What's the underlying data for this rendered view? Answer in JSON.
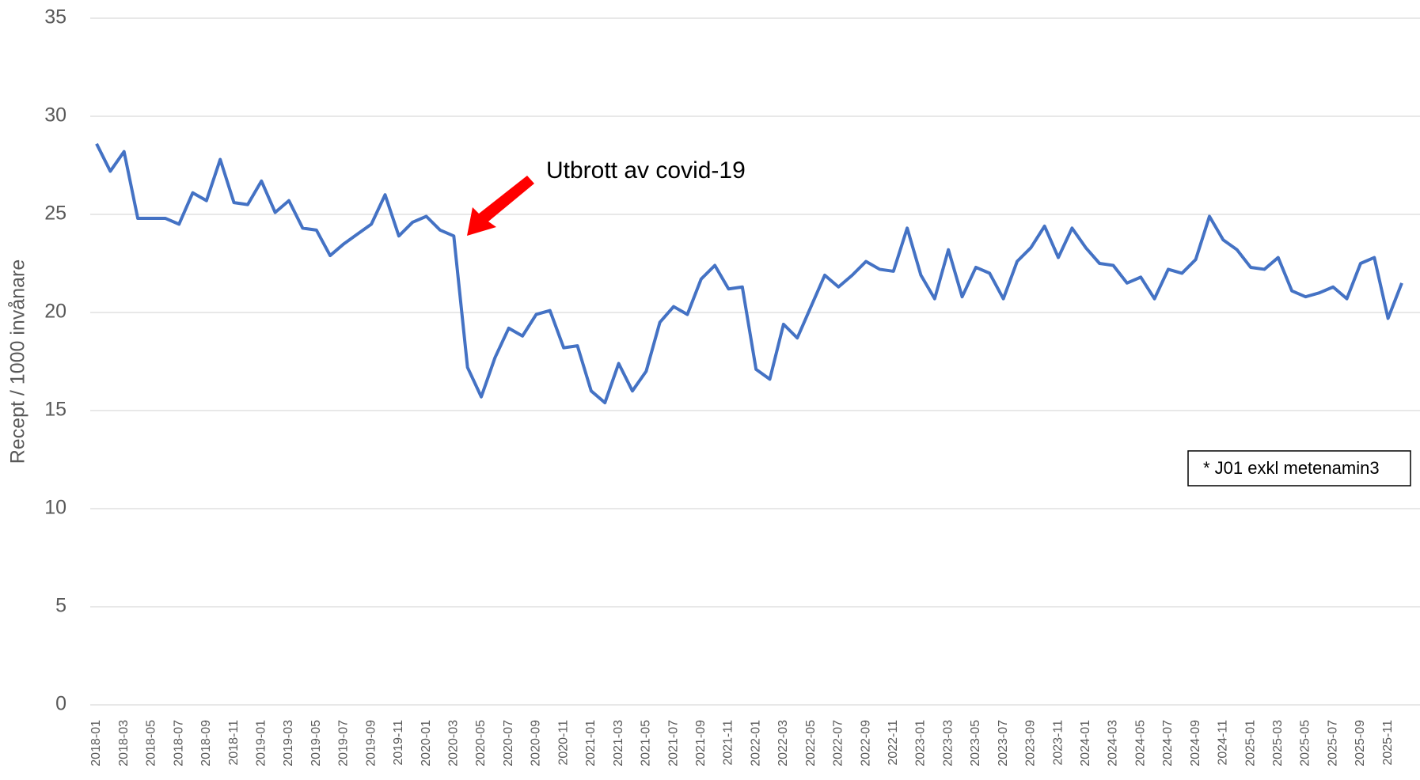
{
  "chart_data": {
    "type": "line",
    "y_label": "Recept / 1000 invånare",
    "annotations": [
      "Utbrott av covid-19",
      "* J01 exkl metenamin3"
    ],
    "categories": [
      "2018-01",
      null,
      "2018-03",
      null,
      "2018-05",
      null,
      "2018-07",
      null,
      "2018-09",
      null,
      "2018-11",
      null,
      "2019-01",
      null,
      "2019-03",
      null,
      "2019-05",
      null,
      "2019-07",
      null,
      "2019-09",
      null,
      "2019-11",
      null,
      "2020-01",
      null,
      "2020-03",
      null,
      "2020-05",
      null,
      "2020-07",
      null,
      "2020-09",
      null,
      "2020-11",
      null,
      "2021-01",
      null,
      "2021-03",
      null,
      "2021-05",
      null,
      "2021-07",
      null,
      "2021-09",
      null,
      "2021-11",
      null,
      "2022-01",
      null,
      "2022-03",
      null,
      "2022-05",
      null,
      "2022-07",
      null,
      "2022-09",
      null,
      "2022-11",
      null,
      "2023-01",
      null,
      "2023-03",
      null,
      "2023-05",
      null,
      "2023-07",
      null,
      "2023-09",
      null,
      "2023-11",
      null,
      "2024-01",
      null,
      "2024-03",
      null,
      "2024-05",
      null,
      "2024-07",
      null,
      "2024-09",
      null,
      "2024-11",
      null,
      "2025-01",
      null,
      "2025-03",
      null,
      "2025-05",
      null,
      "2025-07",
      null,
      "2025-09",
      null,
      "2025-11",
      null
    ],
    "series": [
      {
        "color": "#4472c4",
        "values": [
          28.6,
          27.2,
          28.2,
          24.8,
          24.8,
          24.8,
          24.5,
          26.1,
          25.7,
          27.8,
          25.6,
          25.5,
          26.7,
          25.1,
          25.7,
          24.3,
          24.2,
          22.9,
          23.5,
          24.0,
          24.5,
          26.0,
          23.9,
          24.6,
          24.9,
          24.2,
          23.9,
          17.2,
          15.7,
          17.7,
          19.2,
          18.8,
          19.9,
          20.1,
          18.2,
          18.3,
          16.0,
          15.4,
          17.4,
          16.0,
          17.0,
          19.5,
          20.3,
          19.9,
          21.7,
          22.4,
          21.2,
          21.3,
          17.1,
          16.6,
          19.4,
          18.7,
          20.3,
          21.9,
          21.3,
          21.9,
          22.6,
          22.2,
          22.1,
          24.3,
          21.9,
          20.7,
          23.2,
          20.8,
          22.3,
          22.0,
          20.7,
          22.6,
          23.3,
          24.4,
          22.8,
          24.3,
          23.3,
          22.5,
          22.4,
          21.5,
          21.8,
          20.7,
          22.2,
          22.0,
          22.7,
          24.9,
          23.7,
          23.2,
          22.3,
          22.2,
          22.8,
          21.1,
          20.8,
          21.0,
          21.3,
          20.7,
          22.5,
          22.8,
          19.7,
          21.5
        ]
      }
    ],
    "ylim": [
      0,
      35
    ],
    "yticks": [
      0,
      5,
      10,
      15,
      20,
      25,
      30,
      35
    ],
    "grid": true
  }
}
